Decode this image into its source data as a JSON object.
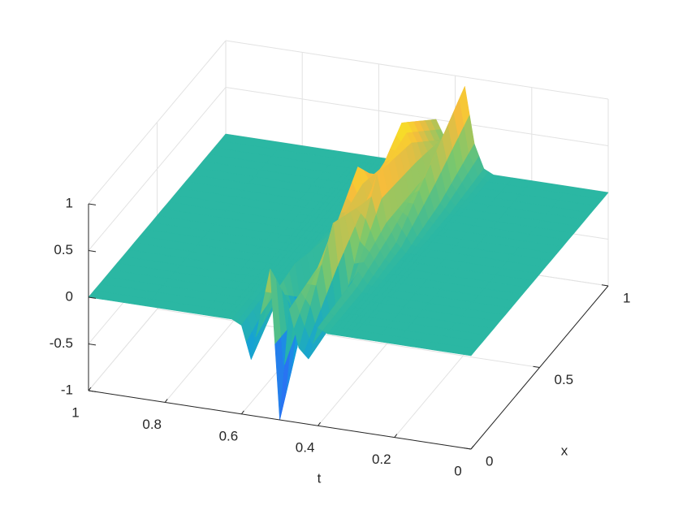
{
  "chart_data": {
    "type": "surface",
    "tlabel": "t",
    "xlabel": "x",
    "t": [
      0,
      0.2,
      0.3,
      0.325,
      0.35,
      0.375,
      0.4,
      0.425,
      0.45,
      0.475,
      0.5,
      0.525,
      0.55,
      0.575,
      0.6,
      0.625,
      0.65,
      0.7,
      1
    ],
    "x": [
      0,
      0.25,
      0.5,
      0.75,
      1
    ],
    "z": [
      [
        0,
        0,
        0,
        0,
        0,
        0,
        0.05,
        -0.3,
        -0.2,
        0.2,
        -1,
        0.6,
        0.1,
        -0.4,
        -0.05,
        0,
        0,
        0,
        0
      ],
      [
        0,
        0,
        0,
        0,
        0,
        0,
        0.1,
        -0.2,
        0.7,
        0.3,
        0.1,
        -0.5,
        0.2,
        0,
        0,
        0,
        0,
        0,
        0
      ],
      [
        0,
        0,
        0,
        0,
        0,
        0.1,
        0.3,
        0.8,
        0.5,
        0.85,
        0.3,
        0,
        0.05,
        0,
        0,
        0,
        0,
        0,
        0
      ],
      [
        0,
        0,
        0,
        0,
        0.1,
        0.5,
        0.3,
        0.7,
        0.9,
        0.2,
        0.05,
        0,
        0,
        0,
        0,
        0,
        0,
        0,
        0
      ],
      [
        0,
        0,
        0,
        0.05,
        0.3,
        0.9,
        0.5,
        0.3,
        0.5,
        0.1,
        0,
        0,
        0,
        0,
        0,
        0,
        0,
        0,
        0
      ]
    ],
    "tlim": [
      0,
      1
    ],
    "tticks": [
      0,
      0.2,
      0.4,
      0.6,
      0.8,
      1
    ],
    "xlim": [
      0,
      1
    ],
    "xticks": [
      0,
      0.5,
      1
    ],
    "zlim": [
      -1,
      1
    ],
    "zticks": [
      -1,
      -0.5,
      0,
      0.5,
      1
    ],
    "grid": true,
    "colormap": [
      "#3e26a8",
      "#2c6ff5",
      "#139fdb",
      "#2bb7a3",
      "#7fc86a",
      "#f6bd3c",
      "#f9fb15"
    ]
  }
}
